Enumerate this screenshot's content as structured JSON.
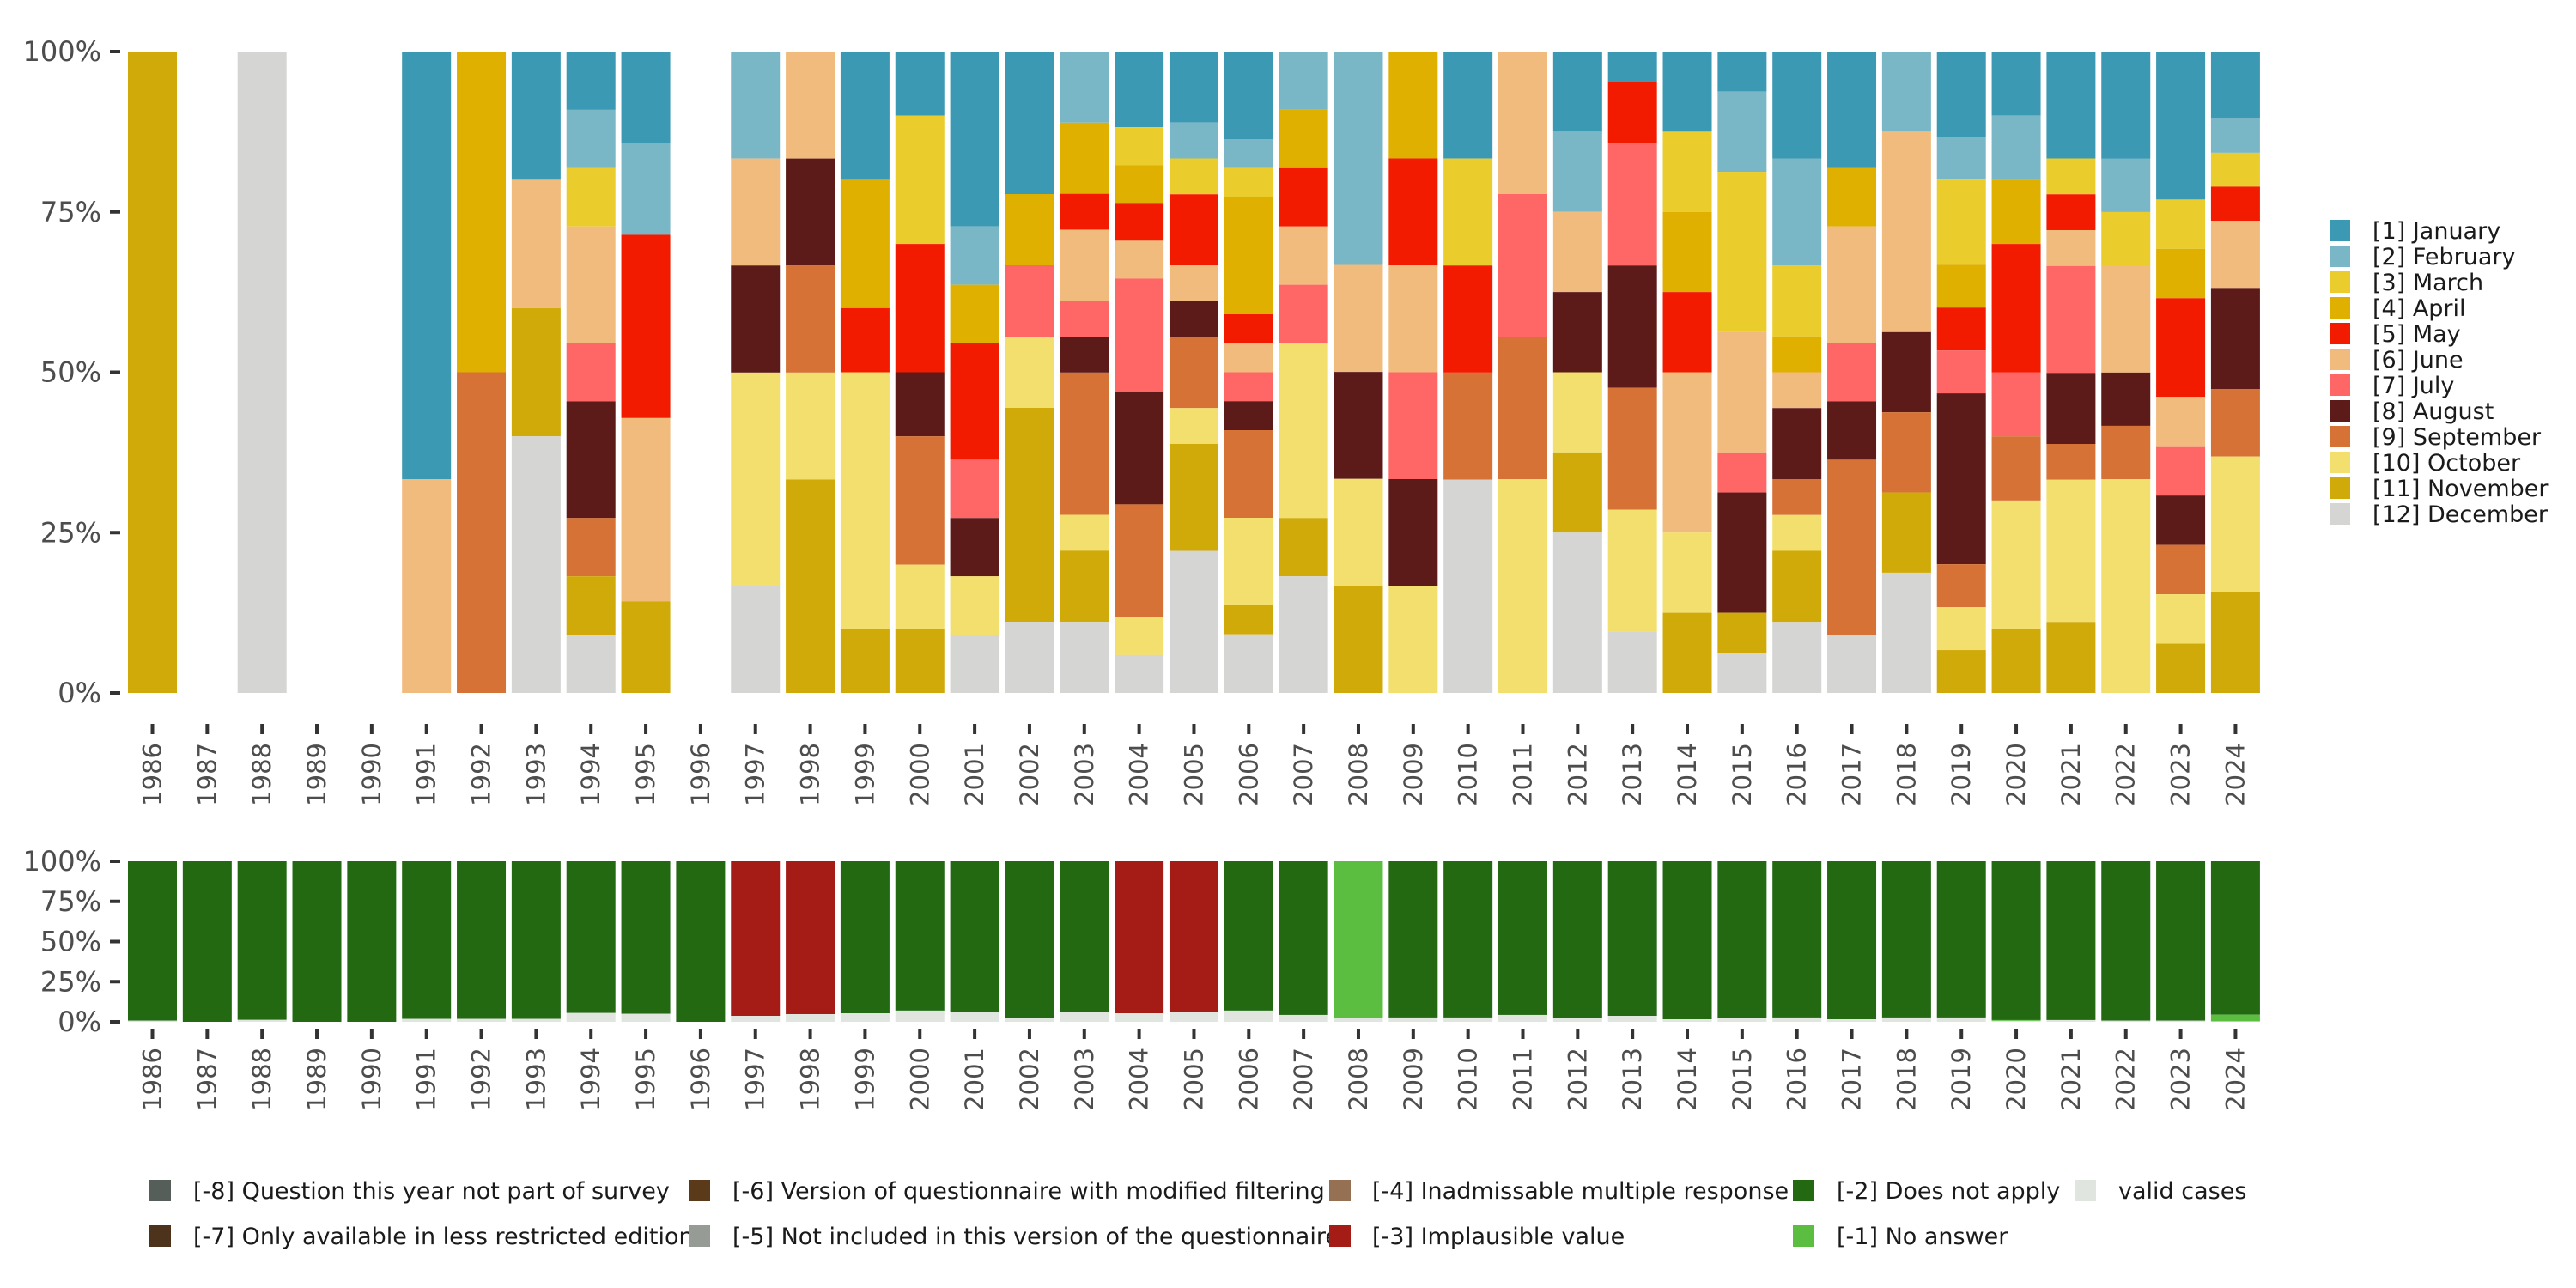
{
  "chart_data": [
    {
      "type": "bar",
      "stacked": true,
      "normalized": true,
      "title": "",
      "xlabel": "",
      "ylabel": "",
      "ylim": [
        0,
        100
      ],
      "yticks": [
        "0%",
        "25%",
        "50%",
        "75%",
        "100%"
      ],
      "categories": [
        "1986",
        "1987",
        "1988",
        "1989",
        "1990",
        "1991",
        "1992",
        "1993",
        "1994",
        "1995",
        "1996",
        "1997",
        "1998",
        "1999",
        "2000",
        "2001",
        "2002",
        "2003",
        "2004",
        "2005",
        "2006",
        "2007",
        "2008",
        "2009",
        "2010",
        "2011",
        "2012",
        "2013",
        "2014",
        "2015",
        "2016",
        "2017",
        "2018",
        "2019",
        "2020",
        "2021",
        "2022",
        "2023",
        "2024"
      ],
      "legend_position": "right",
      "series": [
        {
          "name": "[1] January",
          "color": "#3C99B4",
          "values": [
            0,
            0,
            0,
            0,
            0,
            66.7,
            0,
            20,
            9.1,
            14.3,
            0,
            0,
            0,
            20,
            10,
            27.3,
            22.2,
            0,
            11.8,
            11.1,
            13.6,
            0,
            0,
            0,
            16.7,
            0,
            12.5,
            4.8,
            12.5,
            6.25,
            16.7,
            18.2,
            0,
            13.3,
            10,
            16.7,
            16.7,
            23.1,
            10.5
          ]
        },
        {
          "name": "[2] February",
          "color": "#7AB7C6",
          "values": [
            0,
            0,
            0,
            0,
            0,
            0,
            0,
            0,
            9.1,
            14.3,
            0,
            16.7,
            0,
            0,
            0,
            9.1,
            0,
            11.1,
            0,
            5.6,
            4.5,
            9.1,
            33.3,
            0,
            0,
            0,
            12.5,
            0,
            0,
            12.5,
            16.7,
            0,
            12.5,
            6.7,
            10,
            0,
            8.3,
            0,
            5.3
          ]
        },
        {
          "name": "[3] March",
          "color": "#EACC2C",
          "values": [
            0,
            0,
            0,
            0,
            0,
            0,
            0,
            0,
            9.1,
            0,
            0,
            0,
            0,
            0,
            20,
            0,
            0,
            0,
            5.9,
            5.6,
            4.5,
            0,
            0,
            0,
            16.7,
            0,
            0,
            0,
            12.5,
            25,
            11.1,
            0,
            0,
            13.3,
            0,
            5.6,
            8.3,
            7.7,
            5.3
          ]
        },
        {
          "name": "[4] April",
          "color": "#E0B000",
          "values": [
            0,
            0,
            0,
            0,
            0,
            0,
            50,
            0,
            0,
            0,
            0,
            0,
            0,
            20,
            0,
            9.1,
            11.1,
            11.1,
            5.9,
            0,
            18.2,
            9.1,
            0,
            16.7,
            0,
            0,
            0,
            0,
            12.5,
            0,
            5.6,
            9.1,
            0,
            6.7,
            10,
            0,
            0,
            7.7,
            0
          ]
        },
        {
          "name": "[5] May",
          "color": "#F21B00",
          "values": [
            0,
            0,
            0,
            0,
            0,
            0,
            0,
            0,
            0,
            28.6,
            0,
            0,
            0,
            10,
            20,
            18.2,
            0,
            5.6,
            5.9,
            11.1,
            4.5,
            9.1,
            0,
            16.7,
            16.7,
            0,
            0,
            9.5,
            12.5,
            0,
            0,
            0,
            0,
            6.7,
            20,
            5.6,
            0,
            15.4,
            5.3
          ]
        },
        {
          "name": "[6] June",
          "color": "#F1BB7E",
          "values": [
            0,
            0,
            0,
            0,
            0,
            33.3,
            0,
            20,
            18.2,
            28.6,
            0,
            16.7,
            16.7,
            0,
            0,
            0,
            0,
            11.1,
            5.9,
            5.6,
            4.5,
            9.1,
            16.7,
            16.7,
            0,
            22.2,
            12.5,
            0,
            25,
            18.75,
            5.6,
            18.2,
            31.25,
            0,
            0,
            5.6,
            16.7,
            7.7,
            10.5
          ]
        },
        {
          "name": "[7] July",
          "color": "#FF6666",
          "values": [
            0,
            0,
            0,
            0,
            0,
            0,
            0,
            0,
            9.1,
            0,
            0,
            0,
            0,
            0,
            0,
            9.1,
            11.1,
            5.6,
            17.6,
            0,
            4.5,
            9.1,
            0,
            16.7,
            0,
            22.2,
            0,
            19,
            0,
            6.25,
            0,
            9.1,
            0,
            6.7,
            10,
            16.7,
            0,
            7.7,
            0
          ]
        },
        {
          "name": "[8] August",
          "color": "#5C1A19",
          "values": [
            0,
            0,
            0,
            0,
            0,
            0,
            0,
            0,
            18.2,
            0,
            0,
            16.7,
            16.7,
            0,
            10,
            9.1,
            0,
            5.6,
            17.6,
            5.6,
            4.5,
            0,
            16.7,
            16.7,
            0,
            0,
            12.5,
            19,
            0,
            18.75,
            11.1,
            9.1,
            12.5,
            26.7,
            0,
            11.1,
            8.3,
            7.7,
            15.8
          ]
        },
        {
          "name": "[9] September",
          "color": "#D67236",
          "values": [
            0,
            0,
            0,
            0,
            0,
            0,
            50,
            0,
            9.1,
            0,
            0,
            0,
            16.7,
            0,
            20,
            0,
            0,
            22.2,
            17.6,
            11.1,
            13.6,
            0,
            0,
            0,
            16.7,
            22.2,
            0,
            19,
            0,
            0,
            5.6,
            27.3,
            12.5,
            6.7,
            10,
            5.6,
            8.3,
            7.7,
            10.5
          ]
        },
        {
          "name": "[10] October",
          "color": "#F2DF6D",
          "values": [
            0,
            0,
            0,
            0,
            0,
            0,
            0,
            0,
            0,
            0,
            0,
            33.3,
            16.7,
            40,
            10,
            9.1,
            11.1,
            5.6,
            5.9,
            5.6,
            13.6,
            27.3,
            16.7,
            16.7,
            0,
            33.3,
            12.5,
            19,
            12.5,
            0,
            5.6,
            0,
            0,
            6.7,
            20,
            22.2,
            33.3,
            7.7,
            21.1
          ]
        },
        {
          "name": "[11] November",
          "color": "#D0AA08",
          "values": [
            100,
            0,
            0,
            0,
            0,
            0,
            0,
            20,
            9.1,
            14.3,
            0,
            0,
            33.3,
            10,
            10,
            0,
            33.3,
            11.1,
            0,
            16.7,
            4.5,
            9.1,
            16.7,
            0,
            0,
            0,
            12.5,
            0,
            12.5,
            6.25,
            11.1,
            0,
            12.5,
            6.7,
            10,
            11.1,
            0,
            7.7,
            15.8
          ]
        },
        {
          "name": "[12] December",
          "color": "#D5D5D3",
          "values": [
            0,
            0,
            100,
            0,
            0,
            0,
            0,
            40,
            9.1,
            0,
            0,
            16.7,
            0,
            0,
            0,
            9.1,
            11.1,
            11.1,
            5.9,
            22.2,
            9.1,
            18.2,
            0,
            0,
            33.3,
            0,
            25,
            9.5,
            0,
            6.25,
            11.1,
            9.1,
            18.75,
            0,
            0,
            0,
            0,
            0,
            0
          ]
        }
      ]
    },
    {
      "type": "bar",
      "stacked": true,
      "normalized": true,
      "title": "",
      "xlabel": "",
      "ylabel": "",
      "ylim": [
        0,
        100
      ],
      "yticks": [
        "0%",
        "25%",
        "50%",
        "75%",
        "100%"
      ],
      "categories": [
        "1986",
        "1987",
        "1988",
        "1989",
        "1990",
        "1991",
        "1992",
        "1993",
        "1994",
        "1995",
        "1996",
        "1997",
        "1998",
        "1999",
        "2000",
        "2001",
        "2002",
        "2003",
        "2004",
        "2005",
        "2006",
        "2007",
        "2008",
        "2009",
        "2010",
        "2011",
        "2012",
        "2013",
        "2014",
        "2015",
        "2016",
        "2017",
        "2018",
        "2019",
        "2020",
        "2021",
        "2022",
        "2023",
        "2024"
      ],
      "legend_position": "bottom",
      "legend": [
        {
          "name": "[-8] Question this year not part of survey",
          "color": "#555E58"
        },
        {
          "name": "[-7] Only available in less restricted edition",
          "color": "#4E331C"
        },
        {
          "name": "[-6] Version of questionnaire with modified filtering",
          "color": "#5B3A1A"
        },
        {
          "name": "[-5] Not included in this version of the questionnaire",
          "color": "#979B95"
        },
        {
          "name": "[-4] Inadmissable multiple response",
          "color": "#957052"
        },
        {
          "name": "[-3] Implausible value",
          "color": "#A51C17"
        },
        {
          "name": "[-2] Does not apply",
          "color": "#226912"
        },
        {
          "name": "[-1] No answer",
          "color": "#5BBE40"
        },
        {
          "name": "valid cases",
          "color": "#E1E5E0"
        }
      ],
      "series": [
        {
          "name": "[-3] Implausible value",
          "color": "#A51C17",
          "values": [
            0,
            0,
            0,
            0,
            0,
            0,
            0,
            0,
            0,
            0,
            0,
            96.3,
            95.2,
            0,
            0,
            0,
            0,
            0,
            94.7,
            93.6,
            0,
            0,
            0,
            0,
            0,
            0,
            0,
            0,
            0,
            0,
            0,
            0,
            0,
            0,
            0,
            0,
            0,
            0,
            0
          ]
        },
        {
          "name": "[-2] Does not apply",
          "color": "#226912",
          "values": [
            99.3,
            100,
            98.8,
            100,
            100,
            98.2,
            98.2,
            98.2,
            94.5,
            95.0,
            100,
            0,
            0,
            94.7,
            93.0,
            94.1,
            97.9,
            94.1,
            0,
            0,
            93.0,
            95.7,
            0,
            97.3,
            97.3,
            95.7,
            97.9,
            96.3,
            98.4,
            97.9,
            97.3,
            98.4,
            97.3,
            97.3,
            98.9,
            98.9,
            99.3,
            99.3,
            95.5
          ]
        },
        {
          "name": "[-1] No answer",
          "color": "#5BBE40",
          "values": [
            0,
            0,
            0,
            0,
            0,
            0,
            0,
            0,
            0,
            0,
            0,
            0,
            0,
            0,
            0,
            0,
            0,
            0,
            0,
            0,
            0,
            0,
            97.9,
            0,
            0,
            0,
            0,
            0,
            0,
            0,
            0,
            0,
            0,
            0,
            0.5,
            0,
            0,
            0,
            4.2
          ]
        },
        {
          "name": "valid cases",
          "color": "#E1E5E0",
          "values": [
            0.7,
            0,
            1.2,
            0,
            0,
            1.8,
            1.8,
            1.8,
            5.5,
            5.0,
            0,
            3.7,
            4.8,
            5.3,
            7.0,
            5.9,
            2.1,
            5.9,
            5.3,
            6.4,
            7.0,
            4.3,
            2.1,
            2.7,
            2.7,
            4.3,
            2.1,
            3.7,
            1.6,
            2.1,
            2.7,
            1.6,
            2.7,
            2.7,
            0.6,
            1.1,
            0.7,
            0.7,
            0.3
          ]
        }
      ]
    }
  ]
}
